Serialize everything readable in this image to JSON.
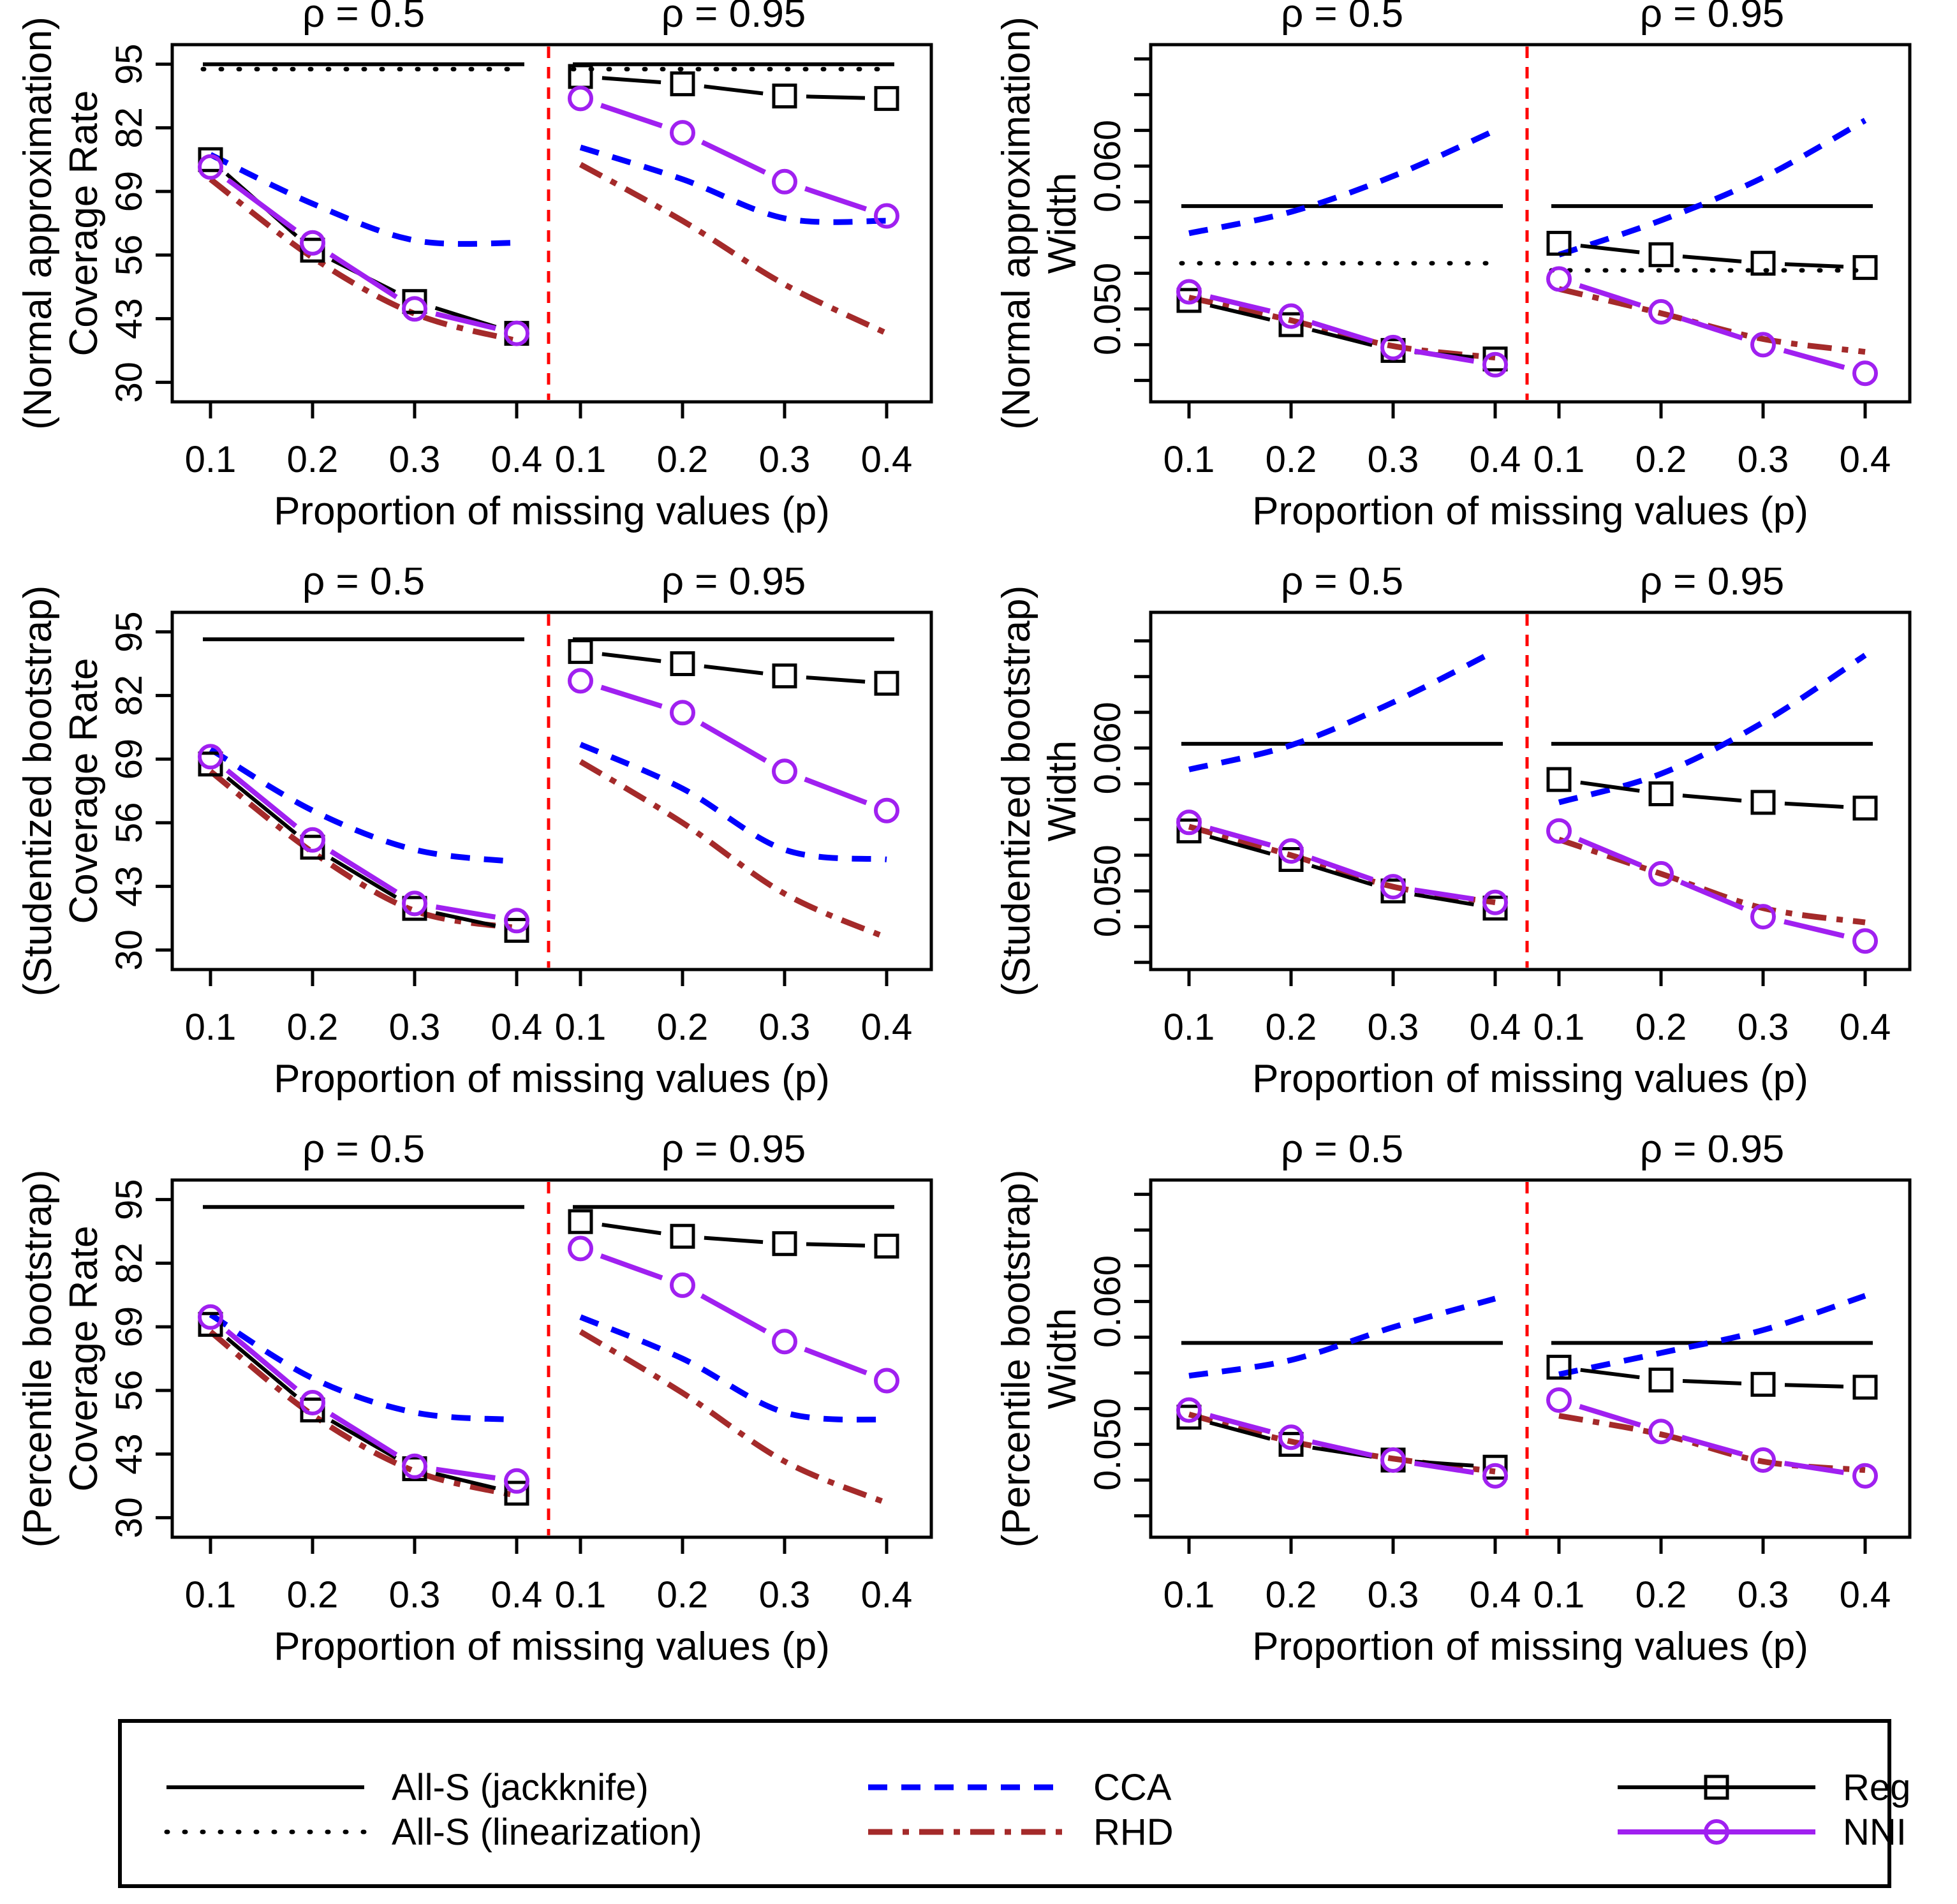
{
  "colors": {
    "all_s": "#000000",
    "cca": "#0000FF",
    "rhd": "#A42A2A",
    "reg": "#000000",
    "nni": "#A020F0",
    "divider": "#FF0000",
    "background": "#FFFFFF"
  },
  "chart_data": {
    "type": "line",
    "x_axis_title": "Proportion of missing values (p)",
    "x": [
      0.1,
      0.2,
      0.3,
      0.4
    ],
    "x_tick_labels": [
      "0.1",
      "0.2",
      "0.3",
      "0.4"
    ],
    "panel_titles": [
      "ρ = 0.5",
      "ρ = 0.95"
    ],
    "figures": [
      {
        "id": "normal-approx-coverage",
        "ylabel_line1": "(Normal approximation)",
        "ylabel_line2": "Coverage Rate",
        "ylim": [
          26,
          99
        ],
        "yticks": [
          30,
          43,
          56,
          69,
          82,
          95
        ],
        "ytick_labels": [
          "30",
          "43",
          "56",
          "69",
          "82",
          "95"
        ],
        "series": [
          {
            "name": "All-S (jackknife)",
            "style": "jackknife",
            "panels": [
              95,
              95
            ]
          },
          {
            "name": "All-S (linearization)",
            "style": "linearization",
            "panels": [
              94,
              94
            ]
          },
          {
            "name": "CCA",
            "style": "cca",
            "panels": [
              [
                76.5,
                66.5,
                59,
                58.5
              ],
              [
                78,
                71.5,
                63.5,
                63
              ]
            ]
          },
          {
            "name": "RHD",
            "style": "rhd",
            "panels": [
              [
                71.5,
                55.5,
                44,
                38.5
              ],
              [
                74.5,
                63,
                50,
                40
              ]
            ]
          },
          {
            "name": "Reg",
            "style": "reg",
            "panels": [
              [
                75.5,
                57,
                46.5,
                40
              ],
              [
                92.5,
                91,
                88.5,
                88
              ]
            ]
          },
          {
            "name": "NNI",
            "style": "nni",
            "panels": [
              [
                74,
                58.5,
                45,
                40
              ],
              [
                88,
                81,
                71,
                64
              ]
            ]
          }
        ]
      },
      {
        "id": "normal-approx-width",
        "ylabel_line1": "(Normal approximation)",
        "ylabel_line2": "Width",
        "ylim": [
          0.0435,
          0.0685
        ],
        "yticks": [
          0.045,
          0.0475,
          0.05,
          0.0525,
          0.055,
          0.0575,
          0.06,
          0.0625,
          0.065,
          0.0675
        ],
        "ytick_labels": [
          "",
          "",
          "0.050",
          "",
          "",
          "",
          "0.060",
          "",
          "",
          ""
        ],
        "series": [
          {
            "name": "All-S (jackknife)",
            "style": "jackknife",
            "panels": [
              0.0572,
              0.0572
            ]
          },
          {
            "name": "All-S (linearization)",
            "style": "linearization",
            "panels": [
              0.0532,
              0.0527
            ]
          },
          {
            "name": "CCA",
            "style": "cca",
            "panels": [
              [
                0.0553,
                0.0568,
                0.0593,
                0.0625
              ],
              [
                0.0538,
                0.0562,
                0.0592,
                0.0632
              ]
            ]
          },
          {
            "name": "RHD",
            "style": "rhd",
            "panels": [
              [
                0.0508,
                0.0492,
                0.0474,
                0.0466
              ],
              [
                0.0514,
                0.0497,
                0.0479,
                0.047
              ]
            ]
          },
          {
            "name": "Reg",
            "style": "reg",
            "panels": [
              [
                0.0506,
                0.0489,
                0.0471,
                0.0465
              ],
              [
                0.0546,
                0.0538,
                0.0532,
                0.0529
              ]
            ]
          },
          {
            "name": "NNI",
            "style": "nni",
            "panels": [
              [
                0.0512,
                0.0495,
                0.0473,
                0.0461
              ],
              [
                0.0521,
                0.0498,
                0.0475,
                0.0455
              ]
            ]
          }
        ]
      },
      {
        "id": "studentized-bootstrap-coverage",
        "ylabel_line1": "(Studentized bootstrap)",
        "ylabel_line2": "Coverage Rate",
        "ylim": [
          26,
          99
        ],
        "yticks": [
          30,
          43,
          56,
          69,
          82,
          95
        ],
        "ytick_labels": [
          "30",
          "43",
          "56",
          "69",
          "82",
          "95"
        ],
        "series": [
          {
            "name": "All-S (jackknife)",
            "style": "jackknife",
            "panels": [
              93.5,
              93.5
            ]
          },
          {
            "name": "CCA",
            "style": "cca",
            "panels": [
              [
                71,
                58.5,
                50.5,
                48
              ],
              [
                72,
                63,
                50.5,
                48.5
              ]
            ]
          },
          {
            "name": "RHD",
            "style": "rhd",
            "panels": [
              [
                66.5,
                50,
                38,
                34.5
              ],
              [
                68.5,
                56,
                41.5,
                32.5
              ]
            ]
          },
          {
            "name": "Reg",
            "style": "reg",
            "panels": [
              [
                68,
                51,
                38.5,
                34
              ],
              [
                91,
                88.5,
                86,
                84.5
              ]
            ]
          },
          {
            "name": "NNI",
            "style": "nni",
            "panels": [
              [
                69.5,
                52.5,
                39.5,
                36
              ],
              [
                85,
                78.5,
                66.5,
                58.5
              ]
            ]
          }
        ]
      },
      {
        "id": "studentized-bootstrap-width",
        "ylabel_line1": "(Studentized bootstrap)",
        "ylabel_line2": "Width",
        "ylim": [
          0.0445,
          0.0695
        ],
        "yticks": [
          0.045,
          0.0475,
          0.05,
          0.0525,
          0.055,
          0.0575,
          0.06,
          0.0625,
          0.065,
          0.0675
        ],
        "ytick_labels": [
          "",
          "",
          "0.050",
          "",
          "",
          "",
          "0.060",
          "",
          "",
          ""
        ],
        "series": [
          {
            "name": "All-S (jackknife)",
            "style": "jackknife",
            "panels": [
              0.0603,
              0.0603
            ]
          },
          {
            "name": "CCA",
            "style": "cca",
            "panels": [
              [
                0.0585,
                0.0602,
                0.0632,
                0.0668
              ],
              [
                0.0562,
                0.0582,
                0.0618,
                0.0665
              ]
            ]
          },
          {
            "name": "RHD",
            "style": "rhd",
            "panels": [
              [
                0.0545,
                0.0525,
                0.0503,
                0.0492
              ],
              [
                0.0536,
                0.0512,
                0.0488,
                0.0478
              ]
            ]
          },
          {
            "name": "Reg",
            "style": "reg",
            "panels": [
              [
                0.0542,
                0.0522,
                0.05,
                0.0488
              ],
              [
                0.0578,
                0.0568,
                0.0562,
                0.0558
              ]
            ]
          },
          {
            "name": "NNI",
            "style": "nni",
            "panels": [
              [
                0.0548,
                0.0528,
                0.0503,
                0.0492
              ],
              [
                0.0542,
                0.0512,
                0.0482,
                0.0465
              ]
            ]
          }
        ]
      },
      {
        "id": "percentile-bootstrap-coverage",
        "ylabel_line1": "(Percentile bootstrap)",
        "ylabel_line2": "Coverage Rate",
        "ylim": [
          26,
          99
        ],
        "yticks": [
          30,
          43,
          56,
          69,
          82,
          95
        ],
        "ytick_labels": [
          "30",
          "43",
          "56",
          "69",
          "82",
          "95"
        ],
        "series": [
          {
            "name": "All-S (jackknife)",
            "style": "jackknife",
            "panels": [
              93.5,
              93.5
            ]
          },
          {
            "name": "CCA",
            "style": "cca",
            "panels": [
              [
                71.5,
                58.5,
                51.5,
                50
              ],
              [
                71,
                62.5,
                51.5,
                50
              ]
            ]
          },
          {
            "name": "RHD",
            "style": "rhd",
            "panels": [
              [
                68,
                51,
                39.5,
                34.5
              ],
              [
                68,
                55.5,
                41.5,
                33
              ]
            ]
          },
          {
            "name": "Reg",
            "style": "reg",
            "panels": [
              [
                69.5,
                52,
                40,
                35
              ],
              [
                90.5,
                87.5,
                86,
                85.5
              ]
            ]
          },
          {
            "name": "NNI",
            "style": "nni",
            "panels": [
              [
                71,
                53.5,
                40.5,
                37.5
              ],
              [
                85,
                77.5,
                66,
                58
              ]
            ]
          }
        ]
      },
      {
        "id": "percentile-bootstrap-width",
        "ylabel_line1": "(Percentile bootstrap)",
        "ylabel_line2": "Width",
        "ylim": [
          0.0435,
          0.0685
        ],
        "yticks": [
          0.045,
          0.0475,
          0.05,
          0.0525,
          0.055,
          0.0575,
          0.06,
          0.0625,
          0.065,
          0.0675
        ],
        "ytick_labels": [
          "",
          "",
          "0.050",
          "",
          "",
          "",
          "0.060",
          "",
          "",
          ""
        ],
        "series": [
          {
            "name": "All-S (jackknife)",
            "style": "jackknife",
            "panels": [
              0.0571,
              0.0571
            ]
          },
          {
            "name": "CCA",
            "style": "cca",
            "panels": [
              [
                0.0548,
                0.0559,
                0.0582,
                0.0602
              ],
              [
                0.0549,
                0.0564,
                0.058,
                0.0604
              ]
            ]
          },
          {
            "name": "RHD",
            "style": "rhd",
            "panels": [
              [
                0.0521,
                0.0502,
                0.049,
                0.0481
              ],
              [
                0.052,
                0.0507,
                0.0488,
                0.0482
              ]
            ]
          },
          {
            "name": "Reg",
            "style": "reg",
            "panels": [
              [
                0.0519,
                0.05,
                0.0489,
                0.0484
              ],
              [
                0.0554,
                0.0545,
                0.0542,
                0.054
              ]
            ]
          },
          {
            "name": "NNI",
            "style": "nni",
            "panels": [
              [
                0.0524,
                0.0505,
                0.0489,
                0.0478
              ],
              [
                0.0531,
                0.0509,
                0.0489,
                0.0478
              ]
            ]
          }
        ]
      }
    ]
  },
  "legend": {
    "entries": [
      {
        "label": "All-S (jackknife)",
        "style": "jackknife",
        "color": "#000000"
      },
      {
        "label": "All-S (linearization)",
        "style": "linearization",
        "color": "#000000"
      },
      {
        "label": "CCA",
        "style": "cca",
        "color": "#0000FF"
      },
      {
        "label": "RHD",
        "style": "rhd",
        "color": "#A42A2A"
      },
      {
        "label": "Reg",
        "style": "reg",
        "color": "#000000"
      },
      {
        "label": "NNI",
        "style": "nni",
        "color": "#A020F0"
      }
    ]
  }
}
